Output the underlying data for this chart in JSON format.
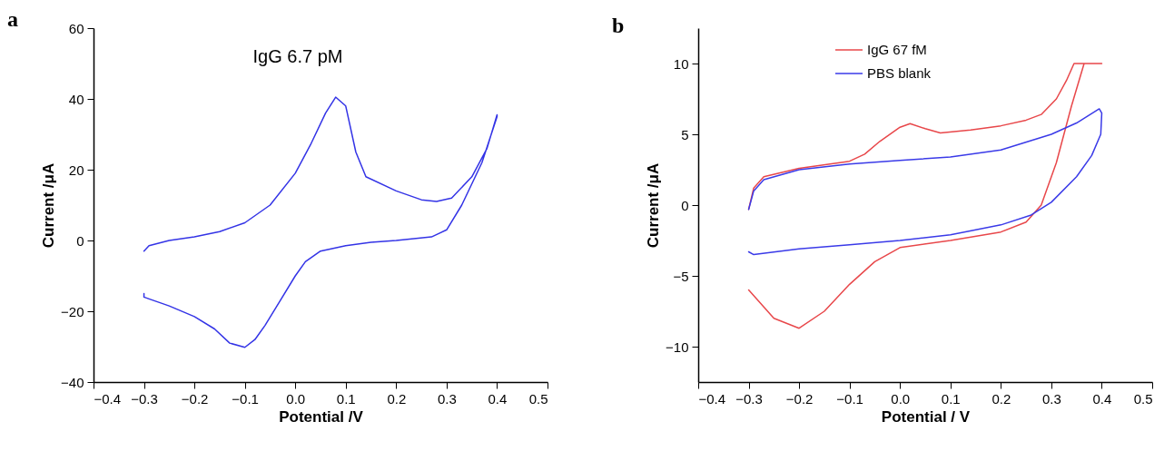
{
  "chart_data": [
    {
      "type": "line",
      "title": "a",
      "xlabel": "Potential /V",
      "ylabel": "Current /μA",
      "annotations": [
        "IgG 6.7 pM"
      ],
      "xlim": [
        -0.4,
        0.5
      ],
      "ylim": [
        -40,
        60
      ],
      "xticks": [
        -0.4,
        -0.3,
        -0.2,
        -0.1,
        {
          "value": 0,
          "label": "0.0"
        },
        0.1,
        0.2,
        0.3,
        0.4,
        0.5
      ],
      "yticks": [
        -40,
        -20,
        0,
        20,
        40,
        60
      ],
      "series": [
        {
          "color": "#3333e6",
          "x": [
            -0.3,
            -0.29,
            -0.25,
            -0.2,
            -0.15,
            -0.1,
            -0.05,
            0,
            0.03,
            0.06,
            0.08,
            0.1,
            0.12,
            0.14,
            0.2,
            0.25,
            0.28,
            0.31,
            0.35,
            0.38,
            0.4,
            0.4,
            0.37,
            0.33,
            0.3,
            0.27,
            0.2,
            0.15,
            0.1,
            0.05,
            0.02,
            0,
            -0.03,
            -0.06,
            -0.08,
            -0.1,
            -0.13,
            -0.16,
            -0.2,
            -0.25,
            -0.29,
            -0.3,
            -0.3
          ],
          "values": [
            -3,
            -1.5,
            0,
            1,
            2.5,
            5,
            10,
            19,
            27,
            36,
            40.5,
            38,
            25,
            18,
            14,
            11.5,
            11,
            12,
            18,
            26,
            35.5,
            35,
            22,
            10,
            3,
            1,
            0,
            -0.5,
            -1.5,
            -3,
            -6,
            -10,
            -17,
            -24,
            -28,
            -30.2,
            -29,
            -25,
            -21.5,
            -18.5,
            -16.5,
            -16,
            -15
          ]
        }
      ]
    },
    {
      "type": "line",
      "title": "b",
      "xlabel": "Potential / V",
      "ylabel": "Current /μA",
      "legend": "top",
      "xlim": [
        -0.4,
        0.5
      ],
      "ylim": [
        -12.5,
        12.5
      ],
      "xticks": [
        -0.4,
        -0.3,
        -0.2,
        -0.1,
        {
          "value": 0,
          "label": "0.0"
        },
        0.1,
        0.2,
        0.3,
        0.4,
        0.5
      ],
      "yticks": [
        -10,
        -5,
        0,
        5,
        10
      ],
      "series": [
        {
          "name": "IgG 67 fM",
          "color": "#e8474a",
          "x": [
            -0.3,
            -0.29,
            -0.27,
            -0.2,
            -0.1,
            -0.07,
            -0.04,
            0,
            0.02,
            0.05,
            0.08,
            0.14,
            0.2,
            0.25,
            0.28,
            0.31,
            0.33,
            0.345,
            0.4,
            0.365,
            0.34,
            0.31,
            0.28,
            0.25,
            0.2,
            0.1,
            0,
            -0.05,
            -0.1,
            -0.15,
            -0.2,
            -0.25,
            -0.3
          ],
          "values": [
            -0.3,
            1.2,
            2,
            2.6,
            3.1,
            3.6,
            4.5,
            5.5,
            5.75,
            5.4,
            5.1,
            5.3,
            5.6,
            6,
            6.4,
            7.5,
            8.8,
            10,
            10,
            10,
            7,
            3,
            0,
            -1.2,
            -1.9,
            -2.5,
            -3,
            -4,
            -5.6,
            -7.5,
            -8.7,
            -8,
            -6
          ]
        },
        {
          "name": "PBS blank",
          "color": "#3a3ae8",
          "x": [
            -0.3,
            -0.29,
            -0.27,
            -0.2,
            -0.1,
            0,
            0.1,
            0.2,
            0.3,
            0.35,
            0.395,
            0.4,
            0.398,
            0.38,
            0.35,
            0.3,
            0.26,
            0.2,
            0.1,
            0,
            -0.1,
            -0.2,
            -0.29,
            -0.3
          ],
          "values": [
            -0.3,
            1,
            1.8,
            2.5,
            2.9,
            3.15,
            3.4,
            3.9,
            5,
            5.8,
            6.8,
            6.5,
            5,
            3.5,
            2,
            0.2,
            -0.7,
            -1.4,
            -2.1,
            -2.5,
            -2.8,
            -3.1,
            -3.5,
            -3.3
          ]
        }
      ]
    }
  ]
}
